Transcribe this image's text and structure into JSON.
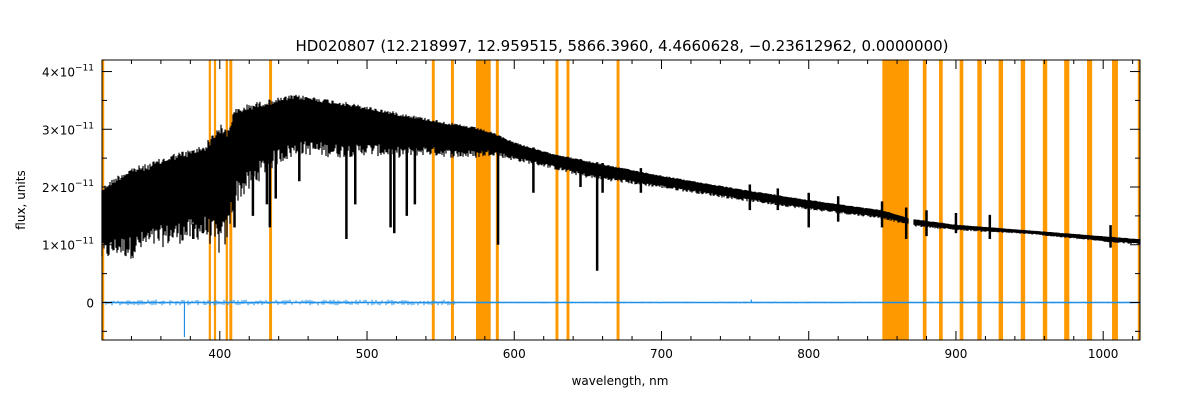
{
  "chart_data": {
    "type": "line",
    "title": "HD020807    (12.218997, 12.959515, 5866.3960, 4.4660628, −0.23612962, 0.0000000)",
    "xlabel": "wavelength, nm",
    "ylabel": "flux, units",
    "xlim": [
      320,
      1025
    ],
    "ylim": [
      -6.5e-12,
      4.2e-11
    ],
    "x_ticks": [
      400,
      500,
      600,
      700,
      800,
      900,
      1000
    ],
    "y_ticks": [
      {
        "value": 4e-11,
        "mantissa": "4×10",
        "exponent": "−11"
      },
      {
        "value": 3e-11,
        "mantissa": "3×10",
        "exponent": "−11"
      },
      {
        "value": 2e-11,
        "mantissa": "2×10",
        "exponent": "−11"
      },
      {
        "value": 1e-11,
        "mantissa": "1×10",
        "exponent": "−11"
      },
      {
        "value": 0,
        "mantissa": "0",
        "exponent": ""
      }
    ],
    "colors": {
      "flux": "#000000",
      "residual": "#1f8fe8",
      "mask": "#ff9900"
    },
    "masked_ranges": [
      [
        320,
        321.5
      ],
      [
        392.5,
        394
      ],
      [
        396,
        397.5
      ],
      [
        404,
        405.5
      ],
      [
        406.5,
        408.5
      ],
      [
        433.5,
        435.5
      ],
      [
        544,
        546
      ],
      [
        557,
        559
      ],
      [
        574,
        584
      ],
      [
        587.5,
        589.5
      ],
      [
        628,
        630
      ],
      [
        635.5,
        637.5
      ],
      [
        669.5,
        671.5
      ],
      [
        850,
        868
      ],
      [
        877.5,
        880
      ],
      [
        888.5,
        891
      ],
      [
        902.5,
        905
      ],
      [
        914.5,
        917.5
      ],
      [
        929,
        932
      ],
      [
        944,
        947
      ],
      [
        959,
        962
      ],
      [
        973.5,
        977
      ],
      [
        989,
        992.5
      ],
      [
        1006,
        1010
      ],
      [
        1023.5,
        1025
      ]
    ],
    "series": [
      {
        "name": "flux",
        "x": [
          320,
          330,
          340,
          350,
          360,
          370,
          380,
          390,
          400,
          405,
          410,
          420,
          430,
          440,
          450,
          460,
          480,
          500,
          520,
          540,
          560,
          575,
          585,
          600,
          620,
          650,
          700,
          750,
          800,
          850,
          870,
          900,
          950,
          1000,
          1025
        ],
        "upper": [
          2e-11,
          2.2e-11,
          2.35e-11,
          2.4e-11,
          2.5e-11,
          2.6e-11,
          2.65e-11,
          2.75e-11,
          3.1e-11,
          3e-11,
          3.35e-11,
          3.45e-11,
          3.5e-11,
          3.55e-11,
          3.6e-11,
          3.58e-11,
          3.5e-11,
          3.4e-11,
          3.3e-11,
          3.2e-11,
          3.1e-11,
          3.03e-11,
          2.95e-11,
          2.78e-11,
          2.62e-11,
          2.45e-11,
          2.2e-11,
          1.98e-11,
          1.78e-11,
          1.6e-11,
          1.45e-11,
          1.35e-11,
          1.25e-11,
          1.15e-11,
          1.1e-11
        ],
        "lower": [
          7e-12,
          8e-12,
          7.5e-12,
          9e-12,
          9.5e-12,
          1e-11,
          1.05e-11,
          1.1e-11,
          8e-12,
          1e-11,
          1.7e-11,
          1.9e-11,
          2.2e-11,
          2.4e-11,
          2.5e-11,
          2.55e-11,
          2.5e-11,
          2.55e-11,
          2.5e-11,
          2.55e-11,
          2.5e-11,
          2.5e-11,
          2.55e-11,
          2.45e-11,
          2.35e-11,
          2.15e-11,
          1.98e-11,
          1.78e-11,
          1.6e-11,
          1.45e-11,
          1.32e-11,
          1.25e-11,
          1.18e-11,
          1.05e-11,
          1e-11
        ],
        "absorption_lines": [
          {
            "x": 382,
            "y": 1.1e-11
          },
          {
            "x": 388.5,
            "y": 1.2e-11
          },
          {
            "x": 410,
            "y": 1.3e-11
          },
          {
            "x": 422.5,
            "y": 1.5e-11
          },
          {
            "x": 432,
            "y": 1.7e-11
          },
          {
            "x": 434,
            "y": 1.3e-11
          },
          {
            "x": 438,
            "y": 1.8e-11
          },
          {
            "x": 454,
            "y": 2.1e-11
          },
          {
            "x": 486,
            "y": 1.1e-11
          },
          {
            "x": 492,
            "y": 1.7e-11
          },
          {
            "x": 516,
            "y": 1.3e-11
          },
          {
            "x": 518.5,
            "y": 1.2e-11
          },
          {
            "x": 527,
            "y": 1.5e-11
          },
          {
            "x": 532.5,
            "y": 1.7e-11
          },
          {
            "x": 589,
            "y": 1e-11
          },
          {
            "x": 613,
            "y": 1.9e-11
          },
          {
            "x": 645,
            "y": 2e-11
          },
          {
            "x": 656.3,
            "y": 5.5e-12
          },
          {
            "x": 660,
            "y": 1.9e-11
          },
          {
            "x": 686,
            "y": 1.9e-11
          },
          {
            "x": 760,
            "y": 1.6e-11
          },
          {
            "x": 779,
            "y": 1.6e-11
          },
          {
            "x": 800,
            "y": 1.3e-11
          },
          {
            "x": 820,
            "y": 1.4e-11
          },
          {
            "x": 849.8,
            "y": 1.3e-11
          },
          {
            "x": 866.2,
            "y": 1.1e-11
          },
          {
            "x": 880,
            "y": 1.15e-11
          },
          {
            "x": 900,
            "y": 1.2e-11
          },
          {
            "x": 923,
            "y": 1.1e-11
          },
          {
            "x": 1005,
            "y": 9.5e-12
          }
        ]
      },
      {
        "name": "residual",
        "x": [
          320,
          1025
        ],
        "y": [
          0,
          0
        ],
        "spikes": [
          {
            "x": 376,
            "y": -6e-12
          },
          {
            "x": 761,
            "y": 5e-13
          }
        ]
      }
    ]
  }
}
